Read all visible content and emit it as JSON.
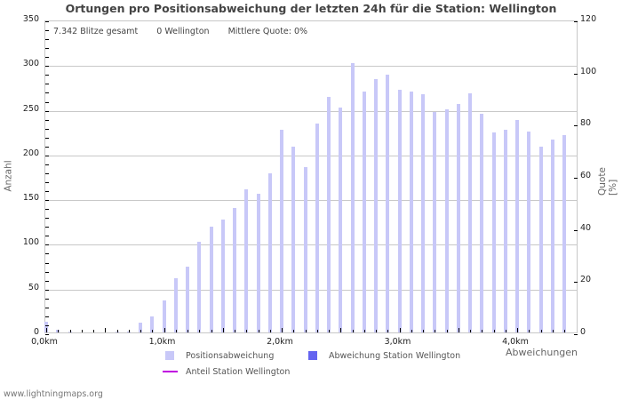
{
  "title": "Ortungen pro Positionsabweichung der letzten 24h für die Station: Wellington",
  "info": {
    "total": "7.342 Blitze gesamt",
    "station": "0 Wellington",
    "quote": "Mittlere Quote:  0%"
  },
  "footer": "www.lightningmaps.org",
  "legend": {
    "positions": "Positionsabweichung",
    "station": "Abweichung Station Wellington",
    "anteil": "Anteil Station Wellington"
  },
  "colors": {
    "positions": "#c8c8f8",
    "station": "#6464f0",
    "anteil": "#c000e0",
    "grid": "#c8c8c8"
  },
  "chart_data": {
    "type": "bar",
    "title": "Ortungen pro Positionsabweichung der letzten 24h für die Station: Wellington",
    "xlabel": "Abweichungen",
    "ylabel": "Anzahl",
    "y2label": "Quote [%]",
    "ylim": [
      0,
      350
    ],
    "y2lim": [
      0,
      120
    ],
    "yticks": [
      0,
      50,
      100,
      150,
      200,
      250,
      300,
      350
    ],
    "y2ticks": [
      0,
      20,
      40,
      60,
      80,
      100,
      120
    ],
    "xticks": [
      "0,0km",
      "1,0km",
      "2,0km",
      "3,0km",
      "4,0km"
    ],
    "grid": true,
    "legend_position": "bottom",
    "categories": [
      "0,0",
      "0,1",
      "0,2",
      "0,3",
      "0,4",
      "0,5",
      "0,6",
      "0,7",
      "0,8",
      "0,9",
      "1,0",
      "1,1",
      "1,2",
      "1,3",
      "1,4",
      "1,5",
      "1,6",
      "1,7",
      "1,8",
      "1,9",
      "2,0",
      "2,1",
      "2,2",
      "2,3",
      "2,4",
      "2,5",
      "2,6",
      "2,7",
      "2,8",
      "2,9",
      "3,0",
      "3,1",
      "3,2",
      "3,3",
      "3,4",
      "3,5",
      "3,6",
      "3,7",
      "3,8",
      "3,9",
      "4,0",
      "4,1",
      "4,2",
      "4,3",
      "4,4"
    ],
    "series": [
      {
        "name": "Positionsabweichung",
        "values": [
          12,
          3,
          1,
          0,
          0,
          0,
          1,
          1,
          11,
          18,
          36,
          61,
          74,
          101,
          118,
          126,
          139,
          160,
          155,
          178,
          227,
          208,
          185,
          234,
          264,
          252,
          301,
          269,
          283,
          288,
          271,
          269,
          266,
          247,
          250,
          256,
          267,
          245,
          224,
          227,
          238,
          225,
          208,
          216,
          221
        ]
      },
      {
        "name": "Abweichung Station Wellington",
        "values": [
          0,
          0,
          0,
          0,
          0,
          0,
          0,
          0,
          0,
          0,
          0,
          0,
          0,
          0,
          0,
          0,
          0,
          0,
          0,
          0,
          0,
          0,
          0,
          0,
          0,
          0,
          0,
          0,
          0,
          0,
          0,
          0,
          0,
          0,
          0,
          0,
          0,
          0,
          0,
          0,
          0,
          0,
          0,
          0,
          0
        ]
      },
      {
        "name": "Anteil Station Wellington",
        "values": []
      }
    ]
  }
}
